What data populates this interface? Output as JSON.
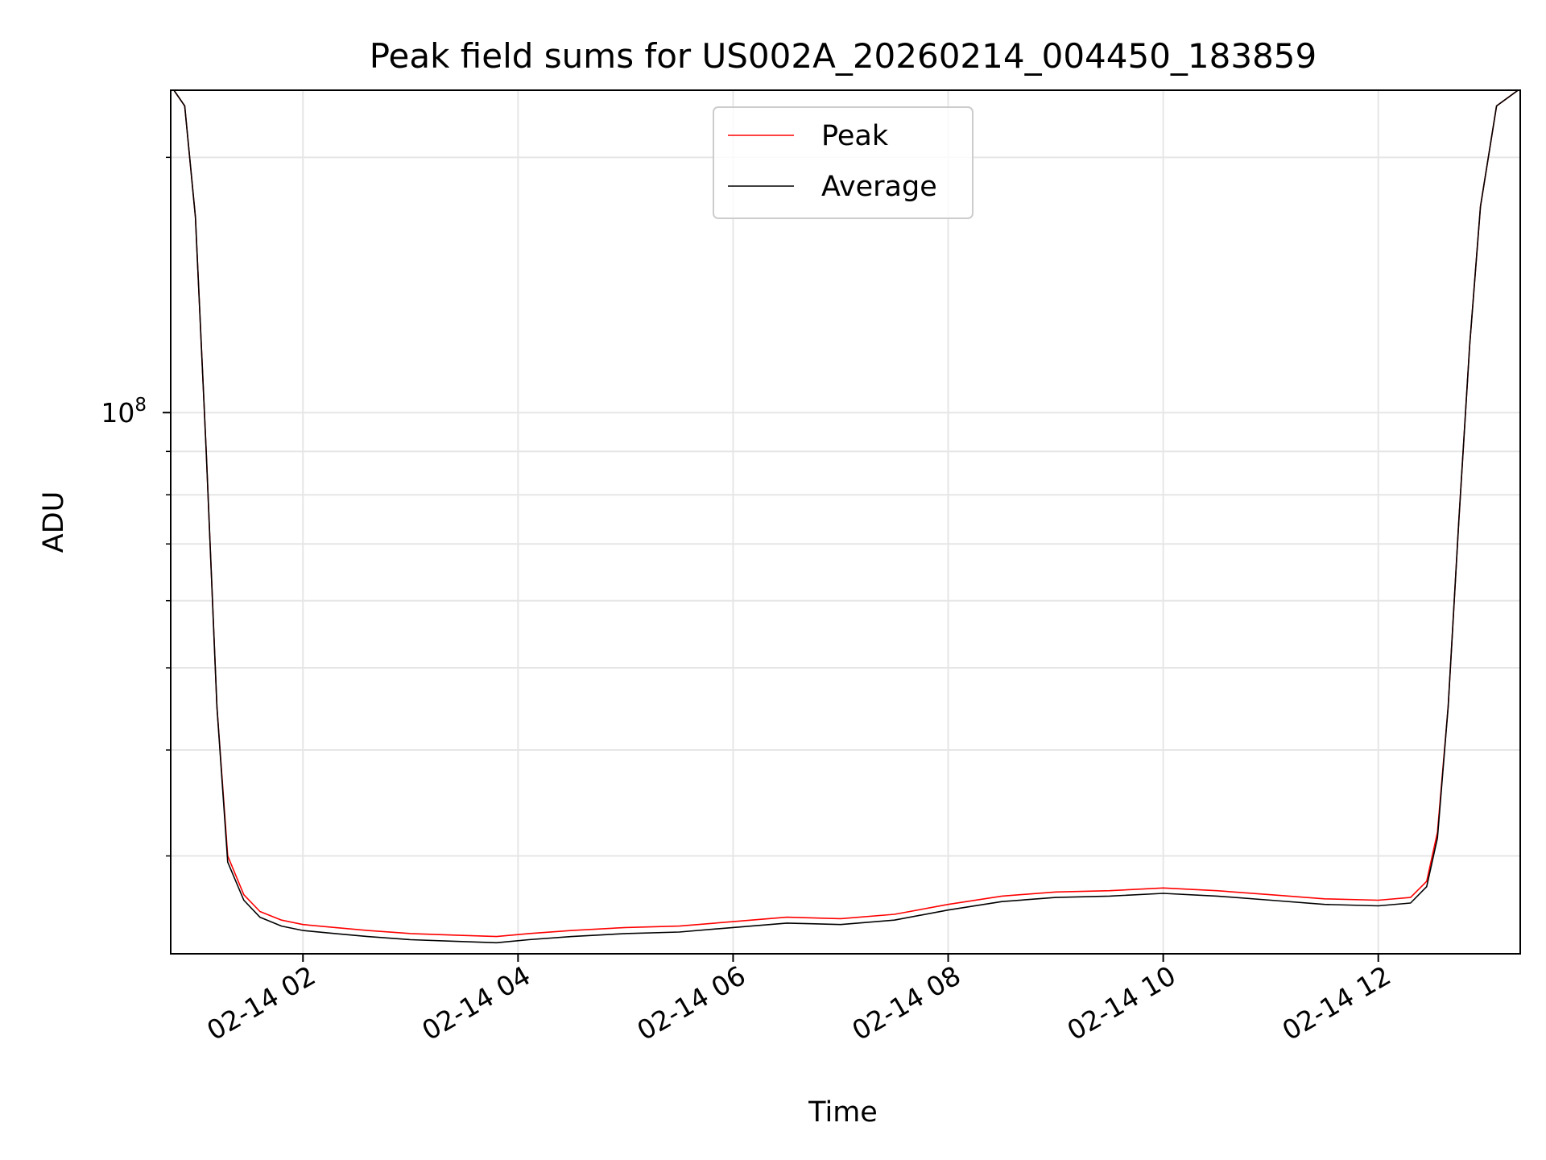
{
  "chart_data": {
    "type": "line",
    "title": "Peak field sums for US002A_20260214_004450_183859",
    "xlabel": "Time",
    "ylabel": "ADU",
    "y_scale": "log",
    "ylim": [
      23000000,
      240000000
    ],
    "xlim_hours": [
      0.77,
      13.32
    ],
    "x_ticks": [
      {
        "hour": 2,
        "label": "02-14 02"
      },
      {
        "hour": 4,
        "label": "02-14 04"
      },
      {
        "hour": 6,
        "label": "02-14 06"
      },
      {
        "hour": 8,
        "label": "02-14 08"
      },
      {
        "hour": 10,
        "label": "02-14 10"
      },
      {
        "hour": 12,
        "label": "02-14 12"
      }
    ],
    "y_major_ticks": [
      {
        "value": 100000000,
        "base": "10",
        "exp": "8"
      }
    ],
    "y_minor_ticks": [
      30000000,
      40000000,
      50000000,
      60000000,
      70000000,
      80000000,
      90000000,
      200000000
    ],
    "grid": true,
    "legend_position": "top-center",
    "series": [
      {
        "name": "Peak",
        "color": "#ff0000",
        "x_hours": [
          0.8,
          0.9,
          1.0,
          1.1,
          1.2,
          1.3,
          1.45,
          1.6,
          1.8,
          2.0,
          2.3,
          2.6,
          3.0,
          3.4,
          3.8,
          4.1,
          4.5,
          5.0,
          5.5,
          6.0,
          6.5,
          7.0,
          7.5,
          8.0,
          8.5,
          9.0,
          9.5,
          10.0,
          10.5,
          11.0,
          11.5,
          12.0,
          12.3,
          12.45,
          12.55,
          12.65,
          12.75,
          12.85,
          12.95,
          13.1,
          13.3
        ],
        "values": [
          240000000,
          230000000,
          170000000,
          90000000,
          45000000,
          30000000,
          27000000,
          25800000,
          25200000,
          24900000,
          24700000,
          24500000,
          24300000,
          24200000,
          24100000,
          24300000,
          24500000,
          24700000,
          24800000,
          25100000,
          25400000,
          25300000,
          25600000,
          26300000,
          26900000,
          27200000,
          27300000,
          27500000,
          27300000,
          27000000,
          26700000,
          26600000,
          26800000,
          28000000,
          32000000,
          45000000,
          75000000,
          120000000,
          175000000,
          230000000,
          240000000
        ]
      },
      {
        "name": "Average",
        "color": "#000000",
        "x_hours": [
          0.8,
          0.9,
          1.0,
          1.1,
          1.2,
          1.3,
          1.45,
          1.6,
          1.8,
          2.0,
          2.3,
          2.6,
          3.0,
          3.4,
          3.8,
          4.1,
          4.5,
          5.0,
          5.5,
          6.0,
          6.5,
          7.0,
          7.5,
          8.0,
          8.5,
          9.0,
          9.5,
          10.0,
          10.5,
          11.0,
          11.5,
          12.0,
          12.3,
          12.45,
          12.55,
          12.65,
          12.75,
          12.85,
          12.95,
          13.1,
          13.3
        ],
        "values": [
          240000000,
          230000000,
          170000000,
          90000000,
          45000000,
          29500000,
          26600000,
          25400000,
          24800000,
          24500000,
          24300000,
          24100000,
          23900000,
          23800000,
          23700000,
          23900000,
          24100000,
          24300000,
          24400000,
          24700000,
          25000000,
          24900000,
          25200000,
          25900000,
          26500000,
          26800000,
          26900000,
          27100000,
          26900000,
          26600000,
          26300000,
          26200000,
          26400000,
          27600000,
          31500000,
          45000000,
          75000000,
          120000000,
          175000000,
          230000000,
          240000000
        ]
      }
    ]
  }
}
